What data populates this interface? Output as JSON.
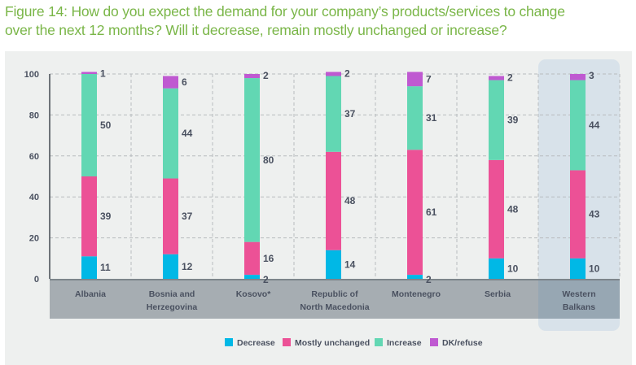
{
  "figure": {
    "title_line1": "Figure 14: How do you expect the demand for your company’s products/services to change",
    "title_line2": "over the next 12 months? Will it decrease, remain mostly unchanged or increase?"
  },
  "chart_data": {
    "type": "bar",
    "stacked": true,
    "title": "Figure 14: How do you expect the demand for your company’s products/services to change over the next 12 months? Will it decrease, remain mostly unchanged or increase?",
    "xlabel": "",
    "ylabel": "",
    "ylim": [
      0,
      100
    ],
    "yticks": [
      0,
      20,
      40,
      60,
      80,
      100
    ],
    "grid": true,
    "legend_position": "bottom",
    "highlighted_category": "Western Balkans",
    "categories": [
      [
        "Albania"
      ],
      [
        "Bosnia and",
        "Herzegovina"
      ],
      [
        "Kosovo*"
      ],
      [
        "Republic of",
        "North Macedonia"
      ],
      [
        "Montenegro"
      ],
      [
        "Serbia"
      ],
      [
        "Western",
        "Balkans"
      ]
    ],
    "series": [
      {
        "name": "Decrease",
        "color": "#00b8e6",
        "values": [
          11,
          12,
          2,
          14,
          2,
          10,
          10
        ]
      },
      {
        "name": "Mostly unchanged",
        "color": "#ec5196",
        "values": [
          39,
          37,
          16,
          48,
          61,
          48,
          43
        ]
      },
      {
        "name": "Increase",
        "color": "#62d7b3",
        "values": [
          50,
          44,
          80,
          37,
          31,
          39,
          44
        ]
      },
      {
        "name": "DK/refuse",
        "color": "#bf59d1",
        "values": [
          1,
          6,
          2,
          2,
          7,
          2,
          3
        ]
      }
    ]
  },
  "colors": {
    "title": "#7ab648",
    "panel_bg": "#eef0ef",
    "category_band": "#a6adb2",
    "highlight": "#d8e2ea",
    "highlight_band": "#97a7b3",
    "text": "#4a5160"
  }
}
